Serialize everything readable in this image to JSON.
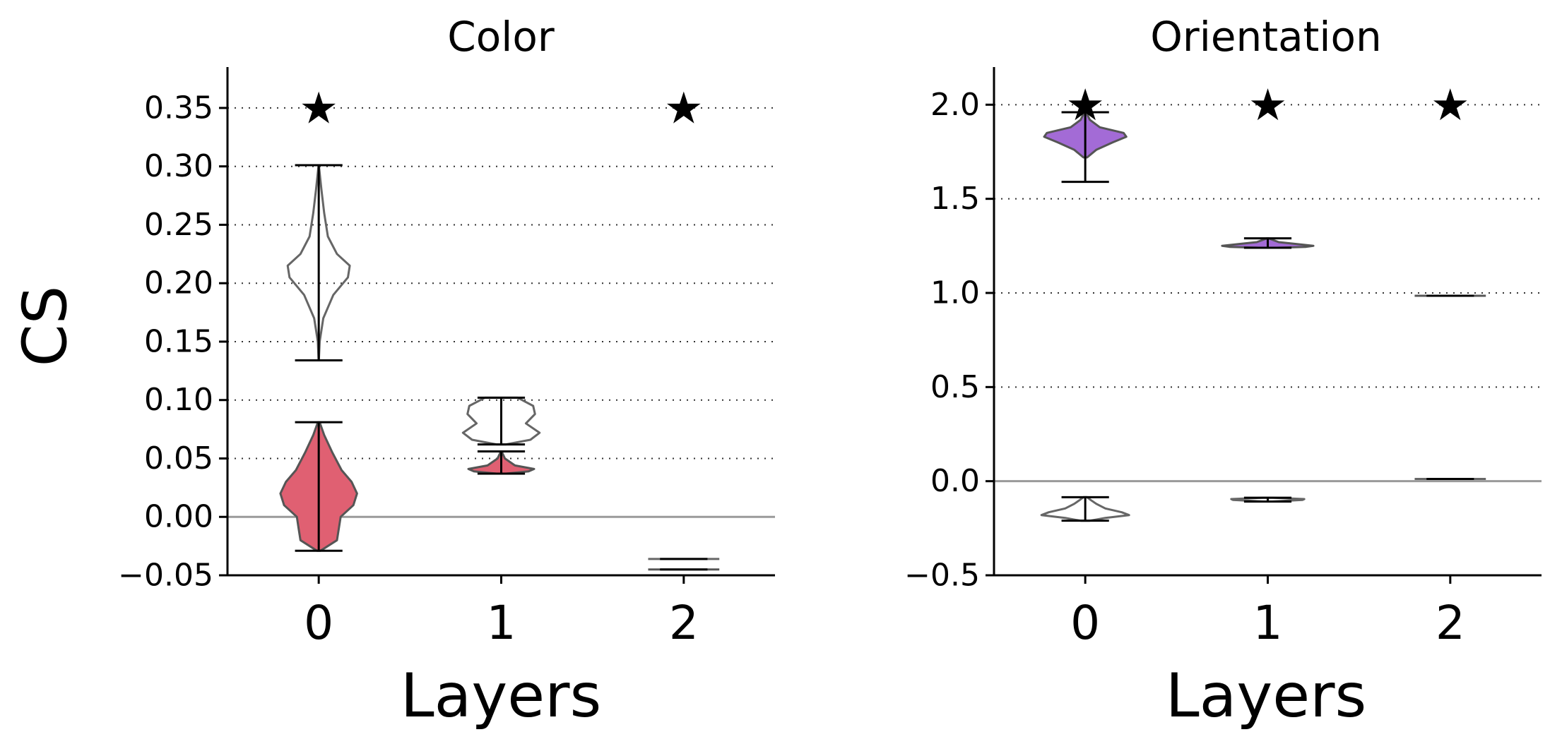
{
  "figure": {
    "shared_ylabel": "CS"
  },
  "chart_data": [
    {
      "type": "violin",
      "title": "Color",
      "xlabel": "Layers",
      "ylabel": "CS",
      "categories": [
        "0",
        "1",
        "2"
      ],
      "ylim": [
        -0.05,
        0.385
      ],
      "y_ticks": [
        -0.05,
        0.0,
        0.05,
        0.1,
        0.15,
        0.2,
        0.25,
        0.3,
        0.35
      ],
      "y_tick_labels": [
        "−0.05",
        "0.00",
        "0.05",
        "0.10",
        "0.15",
        "0.20",
        "0.25",
        "0.30",
        "0.35"
      ],
      "grid": "horizontal dotted",
      "zero_line": 0.0,
      "significance_marker": "★",
      "significance_y": 0.35,
      "significant_layers": [
        "0",
        "2"
      ],
      "series": [
        {
          "role": "unfilled",
          "fill": "none",
          "edge": "#666666",
          "violins": [
            {
              "layer": "0",
              "min": 0.134,
              "max": 0.301,
              "profile": [
                [
                  0.134,
                  0.001
                ],
                [
                  0.15,
                  0.01
                ],
                [
                  0.17,
                  0.05
                ],
                [
                  0.19,
                  0.16
                ],
                [
                  0.205,
                  0.32
                ],
                [
                  0.215,
                  0.34
                ],
                [
                  0.225,
                  0.2
                ],
                [
                  0.24,
                  0.1
                ],
                [
                  0.26,
                  0.06
                ],
                [
                  0.28,
                  0.03
                ],
                [
                  0.301,
                  0.001
                ]
              ]
            },
            {
              "layer": "1",
              "min": 0.062,
              "max": 0.102,
              "profile": [
                [
                  0.062,
                  0.05
                ],
                [
                  0.066,
                  0.32
                ],
                [
                  0.072,
                  0.42
                ],
                [
                  0.08,
                  0.27
                ],
                [
                  0.088,
                  0.37
                ],
                [
                  0.095,
                  0.35
                ],
                [
                  0.102,
                  0.18
                ]
              ]
            },
            {
              "layer": "2",
              "min": -0.036,
              "max": -0.036,
              "profile": []
            }
          ]
        },
        {
          "role": "filled",
          "fill": "#e06072",
          "edge": "#555555",
          "violins": [
            {
              "layer": "0",
              "min": -0.029,
              "max": 0.081,
              "profile": [
                [
                  -0.029,
                  0.02
                ],
                [
                  -0.02,
                  0.2
                ],
                [
                  -0.01,
                  0.22
                ],
                [
                  0.0,
                  0.24
                ],
                [
                  0.01,
                  0.38
                ],
                [
                  0.02,
                  0.42
                ],
                [
                  0.03,
                  0.36
                ],
                [
                  0.04,
                  0.25
                ],
                [
                  0.055,
                  0.15
                ],
                [
                  0.07,
                  0.06
                ],
                [
                  0.081,
                  0.01
                ]
              ]
            },
            {
              "layer": "1",
              "min": 0.037,
              "max": 0.056,
              "profile": [
                [
                  0.037,
                  0.05
                ],
                [
                  0.039,
                  0.3
                ],
                [
                  0.041,
                  0.36
                ],
                [
                  0.044,
                  0.15
                ],
                [
                  0.05,
                  0.04
                ],
                [
                  0.056,
                  0.005
                ]
              ]
            },
            {
              "layer": "2",
              "min": -0.045,
              "max": -0.045,
              "profile": []
            }
          ]
        }
      ]
    },
    {
      "type": "violin",
      "title": "Orientation",
      "xlabel": "Layers",
      "ylabel": "",
      "categories": [
        "0",
        "1",
        "2"
      ],
      "ylim": [
        -0.5,
        2.2
      ],
      "y_ticks": [
        -0.5,
        0.0,
        0.5,
        1.0,
        1.5,
        2.0
      ],
      "y_tick_labels": [
        "−0.5",
        "0.0",
        "0.5",
        "1.0",
        "1.5",
        "2.0"
      ],
      "grid": "horizontal dotted",
      "zero_line": 0.0,
      "significance_marker": "★",
      "significance_y": 2.0,
      "significant_layers": [
        "0",
        "1",
        "2"
      ],
      "series": [
        {
          "role": "filled",
          "fill": "#a36bd6",
          "edge": "#555555",
          "violins": [
            {
              "layer": "0",
              "min": 1.59,
              "max": 1.96,
              "profile": [
                [
                  1.72,
                  0.02
                ],
                [
                  1.76,
                  0.12
                ],
                [
                  1.8,
                  0.3
                ],
                [
                  1.83,
                  0.45
                ],
                [
                  1.85,
                  0.42
                ],
                [
                  1.88,
                  0.16
                ],
                [
                  1.92,
                  0.05
                ],
                [
                  1.96,
                  0.01
                ]
              ]
            },
            {
              "layer": "1",
              "min": 1.24,
              "max": 1.29,
              "profile": [
                [
                  1.24,
                  0.1
                ],
                [
                  1.245,
                  0.42
                ],
                [
                  1.25,
                  0.5
                ],
                [
                  1.26,
                  0.32
                ],
                [
                  1.27,
                  0.12
                ],
                [
                  1.29,
                  0.01
                ]
              ]
            },
            {
              "layer": "2",
              "min": 0.985,
              "max": 0.985,
              "profile": []
            }
          ]
        },
        {
          "role": "unfilled",
          "fill": "none",
          "edge": "#666666",
          "violins": [
            {
              "layer": "0",
              "min": -0.21,
              "max": -0.085,
              "profile": [
                [
                  -0.21,
                  0.05
                ],
                [
                  -0.195,
                  0.22
                ],
                [
                  -0.18,
                  0.48
                ],
                [
                  -0.165,
                  0.4
                ],
                [
                  -0.145,
                  0.22
                ],
                [
                  -0.12,
                  0.12
                ],
                [
                  -0.1,
                  0.06
                ],
                [
                  -0.085,
                  0.02
                ]
              ]
            },
            {
              "layer": "1",
              "min": -0.108,
              "max": -0.088,
              "profile": [
                [
                  -0.108,
                  0.05
                ],
                [
                  -0.1,
                  0.38
                ],
                [
                  -0.095,
                  0.4
                ],
                [
                  -0.088,
                  0.05
                ]
              ]
            },
            {
              "layer": "2",
              "min": 0.012,
              "max": 0.012,
              "profile": []
            }
          ]
        }
      ]
    }
  ]
}
